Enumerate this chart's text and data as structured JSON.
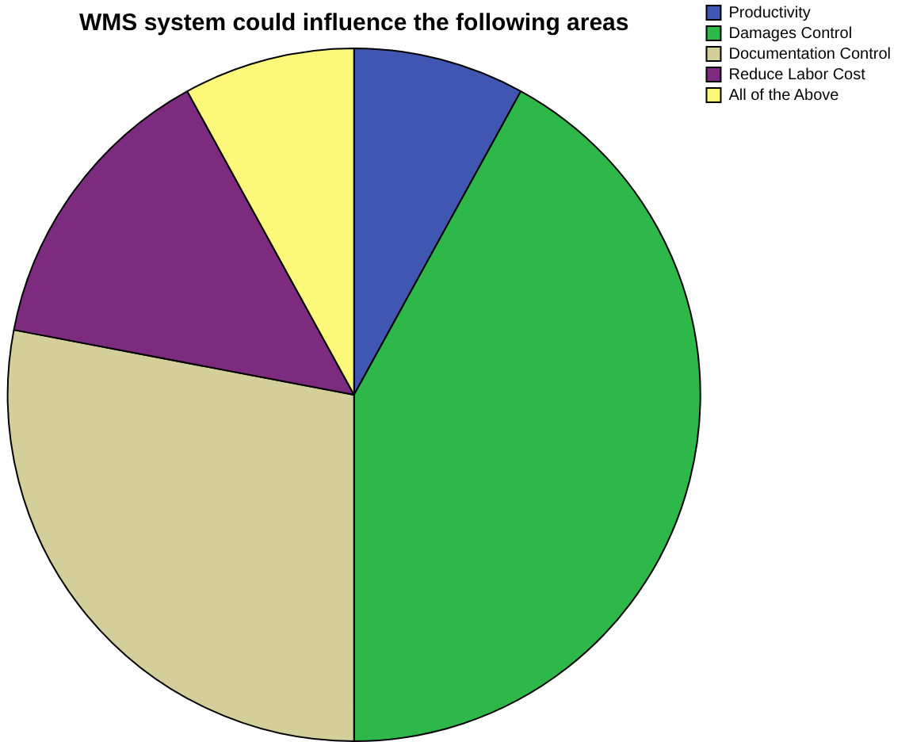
{
  "chart_data": {
    "type": "pie",
    "title": "WMS system could influence the following areas",
    "categories": [
      "Productivity",
      "Damages Control",
      "Documentation Control",
      "Reduce Labor Cost",
      "All of the Above"
    ],
    "values": [
      8,
      42,
      28,
      14,
      8
    ],
    "colors": [
      "#3f57b0",
      "#2fb84a",
      "#d4cf9a",
      "#7d2b7e",
      "#fbf87a"
    ],
    "legend": "top right"
  }
}
